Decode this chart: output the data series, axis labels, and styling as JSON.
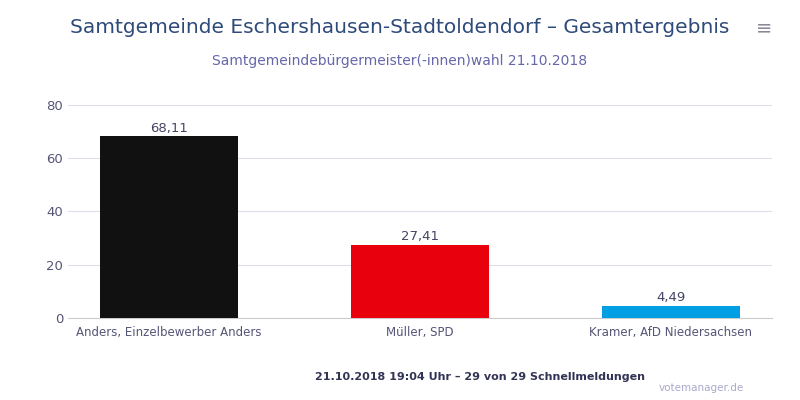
{
  "title": "Samtgemeinde Eschershausen-Stadtoldendorf – Gesamtergebnis",
  "subtitle": "Samtgemeindebürgermeister(-innen)wahl 21.10.2018",
  "categories": [
    "Anders, Einzelbewerber Anders",
    "Müller, SPD",
    "Kramer, AfD Niedersachsen"
  ],
  "values": [
    68.11,
    27.41,
    4.49
  ],
  "bar_colors": [
    "#111111",
    "#e8000d",
    "#009ee3"
  ],
  "value_labels": [
    "68,11",
    "27,41",
    "4,49"
  ],
  "ylim": [
    0,
    87
  ],
  "yticks": [
    0,
    20,
    40,
    60,
    80
  ],
  "footer_left": "21.10.2018 19:04 Uhr – 29 von 29 Schnellmeldungen",
  "footer_right": "votemanager.de",
  "menu_icon": "≡",
  "background_color": "#ffffff",
  "title_color": "#2e4a7a",
  "subtitle_color": "#6666aa",
  "label_color": "#555577",
  "value_label_color": "#444466",
  "footer_color": "#333355",
  "watermark_color": "#aaaacc",
  "grid_color": "#ddddee",
  "title_fontsize": 14.5,
  "subtitle_fontsize": 10,
  "value_label_fontsize": 9.5,
  "xlabel_fontsize": 8.5,
  "footer_fontsize": 8,
  "bar_width": 0.55
}
